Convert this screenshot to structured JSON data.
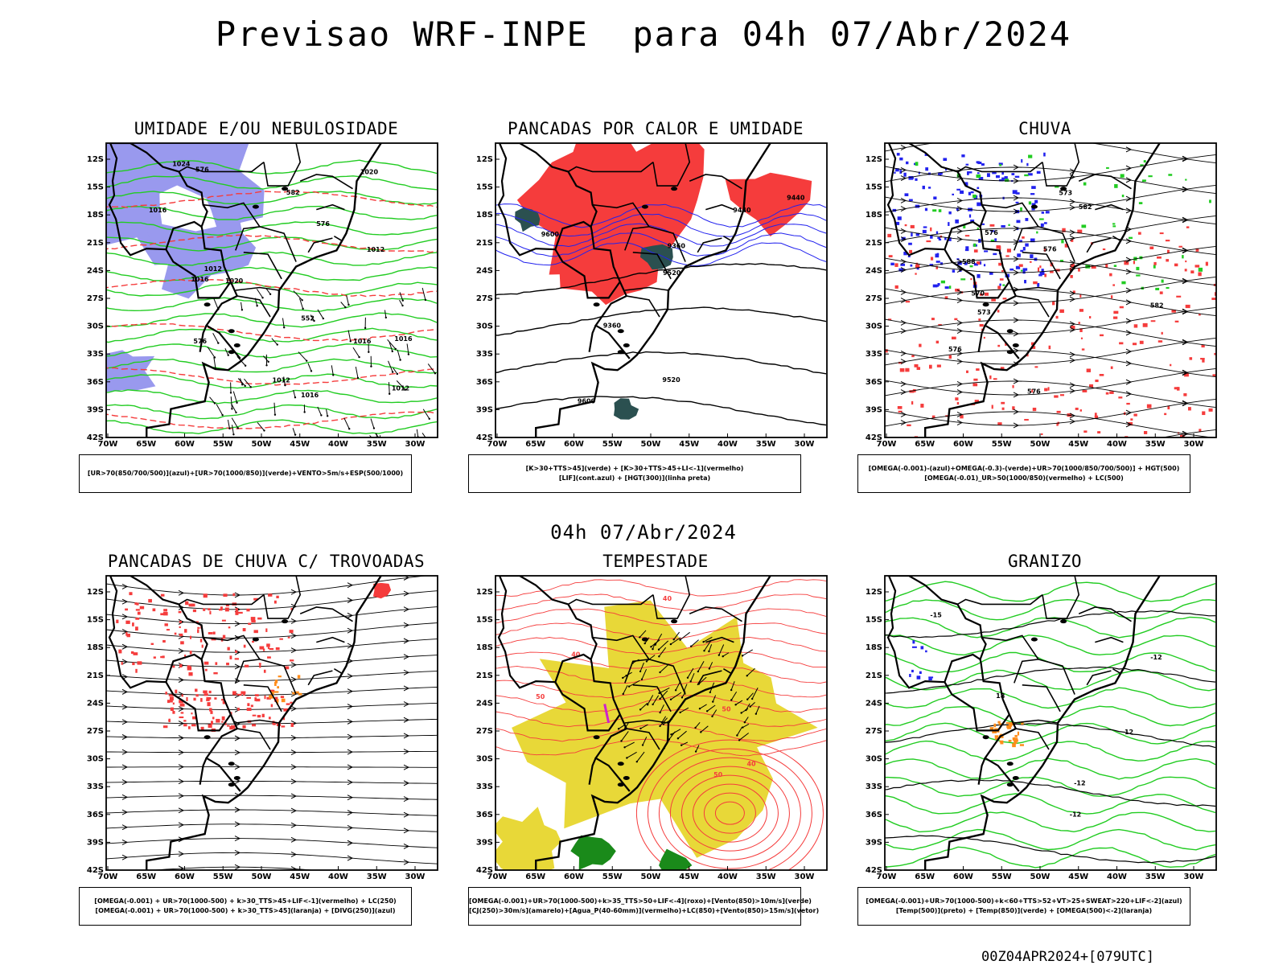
{
  "title": "Previsao WRF-INPE  para 04h 07/Abr/2024",
  "mid_label": "04h 07/Abr/2024",
  "footer": "00Z04APR2024+[079UTC]",
  "axes": {
    "lat_labels": [
      "12S",
      "15S",
      "18S",
      "21S",
      "24S",
      "27S",
      "30S",
      "33S",
      "36S",
      "39S",
      "42S"
    ],
    "lon_labels": [
      "70W",
      "65W",
      "60W",
      "55W",
      "50W",
      "45W",
      "40W",
      "35W",
      "30W"
    ]
  },
  "colors": {
    "blue_shade": "#9999ee",
    "red_fill": "#f53c3c",
    "dark_teal": "#2b5050",
    "green": "#22cc22",
    "blue": "#2222ee",
    "yellow": "#e8d838",
    "purple": "#cc22cc",
    "orange": "#ff8c1a"
  },
  "panels": [
    {
      "title": "UMIDADE E/OU NEBULOSIDADE",
      "legend": [
        "[UR>70(850/700/500)](azul)+[UR>70(1000/850)](verde)+VENTO>5m/s+ESP(500/1000)"
      ],
      "labels": [
        "1012",
        "1012",
        "1012",
        "1012",
        "1016",
        "1016",
        "1016",
        "1016",
        "1020",
        "1020",
        "1024",
        "1016",
        "576",
        "576",
        "576",
        "582",
        "552"
      ]
    },
    {
      "title": "PANCADAS POR CALOR E UMIDADE",
      "legend": [
        "[K>30+TTS>45](verde) + [K>30+TTS>45+LI<-1](vermelho)",
        "[LIF](cont.azul) + [HGT(300)](linha preta)"
      ],
      "labels": [
        "9600",
        "9600",
        "9520",
        "9520",
        "9440",
        "9440",
        "9360",
        "9360"
      ]
    },
    {
      "title": "CHUVA",
      "legend": [
        "[OMEGA(-0.001)-(azul)+OMEGA(-0.3)-(verde)+UR>70(1000/850/700/500)] + HGT(500)",
        "[OMEGA(-0.01)_UR>50(1000/850)(vermelho) + LC(500)"
      ],
      "labels": [
        "588",
        "582",
        "576",
        "576",
        "576",
        "576",
        "570",
        "573",
        "573",
        "582"
      ]
    },
    {
      "title": "PANCADAS DE CHUVA C/ TROVOADAS",
      "legend": [
        "[OMEGA(-0.001) + UR>70(1000-500) + k>30_TTS>45+LIF<-1](vermelho) + LC(250)",
        "[OMEGA(-0.001) + UR>70(1000-500) + k>30_TTS>45](laranja) + [DIVG(250)](azul)"
      ],
      "labels": []
    },
    {
      "title": "TEMPESTADE",
      "legend": [
        "[OMEGA(-0.001)+UR>70(1000-500)+k>35_TTS>50+LIF<-4](roxo)+[Vento(850)>10m/s](verde)",
        "[CJ(250)>30m/s](amarelo)+[Agua_P(40-60mm)](vermelho)+LC(850)+[Vento(850)>15m/s](vetor)"
      ],
      "labels": [
        "50",
        "40",
        "40",
        "50",
        "40",
        "50"
      ]
    },
    {
      "title": "GRANIZO",
      "legend": [
        "[OMEGA(-0.001)+UR>70(1000-500)+k<60+TTS>52+VT>25+SWEAT>220+LIF<-2](azul)",
        "[Temp(500)](preto) + [Temp(850)](verde) + [OMEGA(500)<-2](laranja)"
      ],
      "labels": [
        "-12",
        "-12",
        "-12",
        "12",
        "-15",
        "18"
      ]
    }
  ]
}
